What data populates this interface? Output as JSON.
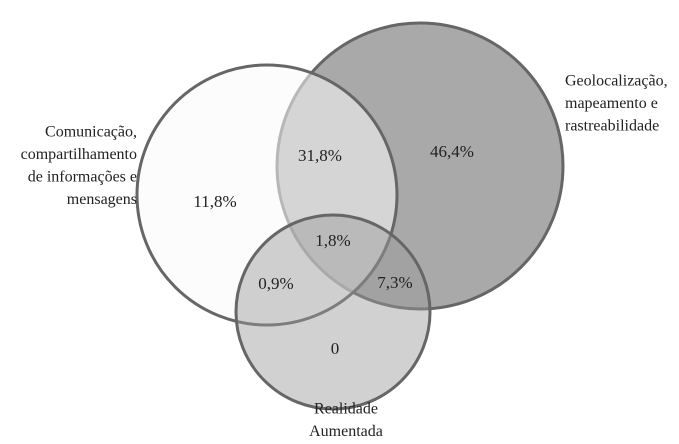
{
  "sets": [
    {
      "lines": [
        "Comunicação,",
        "compartilhamento",
        "de informações e",
        "mensagens"
      ]
    },
    {
      "lines": [
        "Geolocalização,",
        "mapeamento e",
        "rastreabilidade"
      ]
    },
    {
      "lines": [
        "Realidade",
        "Aumentada"
      ]
    }
  ],
  "regions": [
    {
      "label": "11,8%"
    },
    {
      "label": "31,8%"
    },
    {
      "label": "46,4%"
    },
    {
      "label": "1,8%"
    },
    {
      "label": "0,9%"
    },
    {
      "label": "7,3%"
    },
    {
      "label": "0"
    }
  ]
}
